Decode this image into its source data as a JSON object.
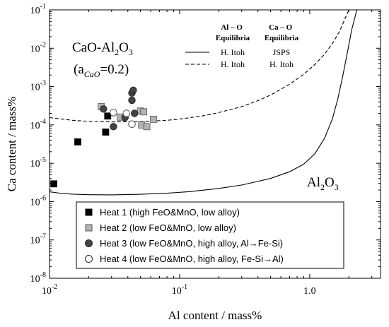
{
  "chart_data": {
    "type": "scatter",
    "xlabel": "Al content / mass%",
    "ylabel": "Ca content / mass%",
    "x_scale": "log",
    "y_scale": "log",
    "xlim": [
      0.01,
      3.5
    ],
    "ylim": [
      1e-08,
      0.1
    ],
    "x_ticks": [
      {
        "value": 0.01,
        "base": "10",
        "exp": "-2"
      },
      {
        "value": 0.1,
        "base": "10",
        "exp": "-1"
      },
      {
        "value": 1,
        "base": "10",
        "exp": "0",
        "plain": "1.0"
      }
    ],
    "y_ticks": [
      {
        "value": 1e-08,
        "base": "10",
        "exp": "-8"
      },
      {
        "value": 1e-07,
        "base": "10",
        "exp": "-7"
      },
      {
        "value": 1e-06,
        "base": "10",
        "exp": "-6"
      },
      {
        "value": 1e-05,
        "base": "10",
        "exp": "-5"
      },
      {
        "value": 0.0001,
        "base": "10",
        "exp": "-4"
      },
      {
        "value": 0.001,
        "base": "10",
        "exp": "-3"
      },
      {
        "value": 0.01,
        "base": "10",
        "exp": "-2"
      },
      {
        "value": 0.1,
        "base": "10",
        "exp": "-1"
      }
    ],
    "annotations": {
      "region_upper_line1": "CaO-Al",
      "region_upper_sub": "2",
      "region_upper_tail": "O",
      "region_upper_sub2": "3",
      "region_upper_line2_open": "(a",
      "region_upper_line2_sub": "CaO",
      "region_upper_line2_close": "=0.2)",
      "region_lower": "Al",
      "region_lower_sub": "2",
      "region_lower_tail": "O",
      "region_lower_sub2": "3"
    },
    "line_legend": {
      "col1_header_line1": "Al – O",
      "col1_header_line2": "Equilibria",
      "col2_header_line1": "Ca – O",
      "col2_header_line2": "Equilibria",
      "rows": [
        {
          "style": "solid",
          "col1": "H. Itoh",
          "col2": "JSPS"
        },
        {
          "style": "dashed",
          "col1": "H. Itoh",
          "col2": "H. Itoh"
        }
      ]
    },
    "lines": [
      {
        "style": "solid",
        "x": [
          0.01,
          0.012,
          0.015,
          0.02,
          0.03,
          0.05,
          0.08,
          0.12,
          0.2,
          0.3,
          0.5,
          0.7,
          0.9,
          1.1,
          1.3,
          1.5,
          1.65,
          1.8,
          1.95,
          2.1,
          2.3
        ],
        "y": [
          1.8e-06,
          1.66e-06,
          1.56e-06,
          1.51e-06,
          1.5e-06,
          1.55e-06,
          1.65e-06,
          1.82e-06,
          2.2e-06,
          2.7e-06,
          4e-06,
          6e-06,
          9.5e-06,
          1.8e-05,
          4.5e-05,
          0.00015,
          0.0005,
          0.002,
          0.008,
          0.03,
          0.1
        ]
      },
      {
        "style": "dashed",
        "x": [
          0.01,
          0.015,
          0.02,
          0.03,
          0.05,
          0.08,
          0.1,
          0.15,
          0.2,
          0.3,
          0.4,
          0.5,
          0.7,
          0.9,
          1.1,
          1.3,
          1.5,
          1.7,
          1.85,
          2.0
        ],
        "y": [
          0.000155,
          0.000132,
          0.000124,
          0.00012,
          0.000122,
          0.000132,
          0.000142,
          0.000172,
          0.00021,
          0.0003,
          0.00043,
          0.0006,
          0.00115,
          0.0021,
          0.0038,
          0.007,
          0.0135,
          0.028,
          0.055,
          0.1
        ]
      }
    ],
    "series": [
      {
        "name": "Heat 1 (high FeO&MnO, low alloy)",
        "marker": "square",
        "fill": "#000000",
        "stroke": "#000000",
        "x": [
          0.0108,
          0.0165,
          0.027,
          0.028
        ],
        "y": [
          2.9e-06,
          3.6e-05,
          6.5e-05,
          0.00017
        ]
      },
      {
        "name": "Heat 2 (low FeO&MnO, low alloy)",
        "marker": "square",
        "fill": "#b3b3b3",
        "stroke": "#555555",
        "x": [
          0.025,
          0.035,
          0.05,
          0.053,
          0.051,
          0.056,
          0.063
        ],
        "y": [
          0.0003,
          0.00016,
          0.00023,
          0.00022,
          0.0001,
          9e-05,
          0.00014
        ]
      },
      {
        "name": "Heat 3 (low FeO&MnO, high alloy, Al→Fe-Si)",
        "marker": "circle",
        "fill": "#444444",
        "stroke": "#222222",
        "x": [
          0.026,
          0.031,
          0.038,
          0.043,
          0.043,
          0.044,
          0.045
        ],
        "y": [
          0.00026,
          9e-05,
          0.000155,
          0.00044,
          0.00068,
          0.0008,
          0.0002
        ]
      },
      {
        "name": "Heat 4 (low FeO&MnO, high alloy, Fe-Si→Al)",
        "marker": "circle",
        "fill": "#ffffff",
        "stroke": "#222222",
        "x": [
          0.031,
          0.039,
          0.043
        ],
        "y": [
          0.00021,
          0.0002,
          0.000105
        ]
      }
    ],
    "legend_position": "lower-left",
    "grid": false
  }
}
